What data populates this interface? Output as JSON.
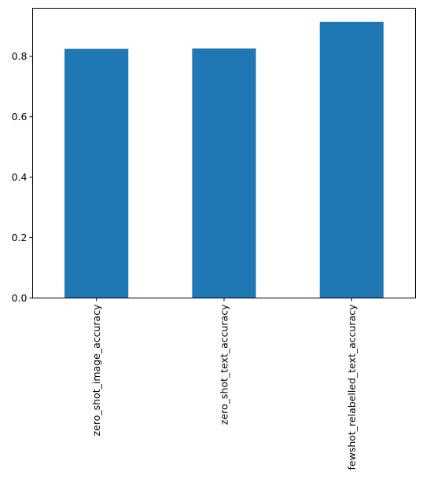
{
  "chart_data": {
    "type": "bar",
    "categories": [
      "zero_shot_image_accuracy",
      "zero_shot_text_accuracy",
      "fewshot_relabelled_text_accuracy"
    ],
    "values": [
      0.825,
      0.826,
      0.914
    ],
    "color": "#1f77b4",
    "ylim": [
      0,
      0.959
    ],
    "yticks": [
      {
        "value": 0,
        "label": "0.0"
      },
      0.2,
      0.4,
      0.6,
      0.8
    ]
  }
}
